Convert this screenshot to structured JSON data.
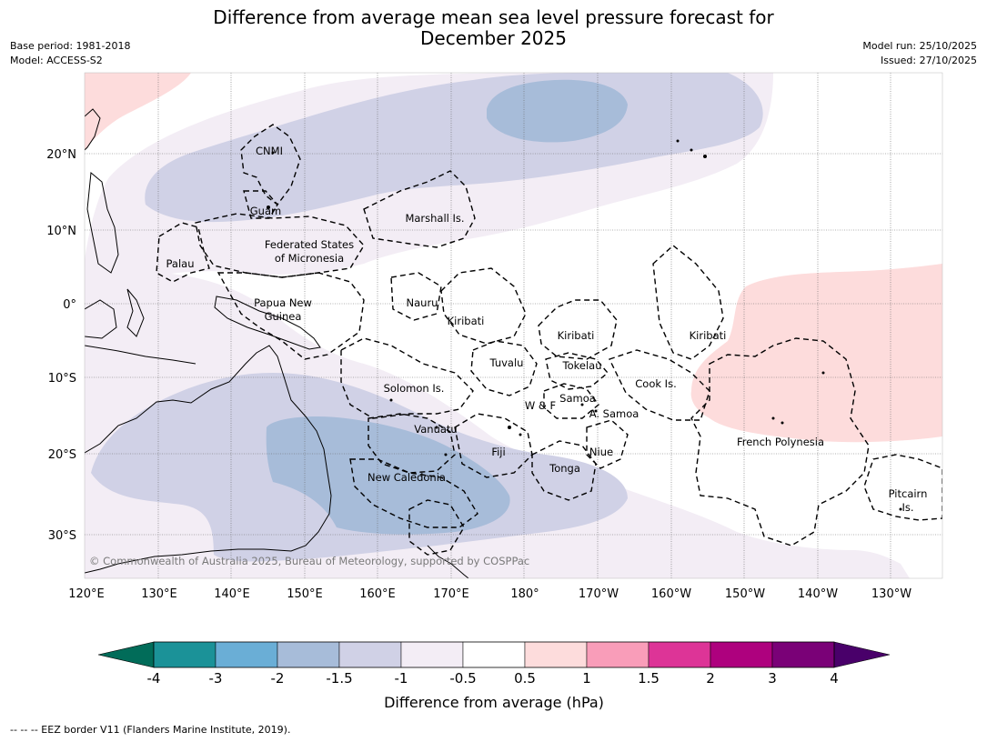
{
  "header": {
    "title_line1": "Difference from average mean sea level pressure forecast for",
    "title_line2": "December 2025",
    "base_period": "Base period: 1981-2018",
    "model": "Model: ACCESS-S2",
    "model_run": "Model run: 25/10/2025",
    "issued": "Issued: 27/10/2025"
  },
  "map": {
    "lon_labels": [
      "120°E",
      "130°E",
      "140°E",
      "150°E",
      "160°E",
      "170°E",
      "180°",
      "170°W",
      "160°W",
      "150°W",
      "140°W",
      "130°W"
    ],
    "lat_labels": [
      "20°N",
      "10°N",
      "0°",
      "10°S",
      "20°S",
      "30°S"
    ],
    "places": [
      {
        "name": "CNMI"
      },
      {
        "name": "Guam"
      },
      {
        "name": "Marshall Is."
      },
      {
        "name": "Federated States"
      },
      {
        "name": "of Micronesia"
      },
      {
        "name": "Palau"
      },
      {
        "name": "Papua New"
      },
      {
        "name": "Guinea"
      },
      {
        "name": "Nauru"
      },
      {
        "name": "Kiribati"
      },
      {
        "name": "Kiribati"
      },
      {
        "name": "Kiribati"
      },
      {
        "name": "Tuvalu"
      },
      {
        "name": "Tokelau"
      },
      {
        "name": "Cook Is."
      },
      {
        "name": "Solomon Is."
      },
      {
        "name": "Samoa"
      },
      {
        "name": "W & F"
      },
      {
        "name": "A. Samoa"
      },
      {
        "name": "Vanuatu"
      },
      {
        "name": "Fiji"
      },
      {
        "name": "Niue"
      },
      {
        "name": "French Polynesia"
      },
      {
        "name": "New Caledonia"
      },
      {
        "name": "Tonga"
      },
      {
        "name": "Pitcairn"
      },
      {
        "name": "Is."
      }
    ],
    "copyright": "© Commonwealth of Australia 2025, Bureau of Meteorology, supported by COSPPac"
  },
  "colorbar": {
    "ticks": [
      "-4",
      "-3",
      "-2",
      "-1.5",
      "-1",
      "-0.5",
      "0.5",
      "1",
      "1.5",
      "2",
      "3",
      "4"
    ],
    "colors": [
      "#1b9298",
      "#6aaed6",
      "#a7bcd9",
      "#d0d1e6",
      "#f3edf5",
      "#ffffff",
      "#fddcdc",
      "#f99db9",
      "#dd3497",
      "#ae017e",
      "#7a0177"
    ],
    "under_color": "#016c59",
    "over_color": "#49006a",
    "label": "Difference from average (hPa)"
  },
  "footnote": "--  --  -- EEZ border V11 (Flanders Marine Institute, 2019)."
}
